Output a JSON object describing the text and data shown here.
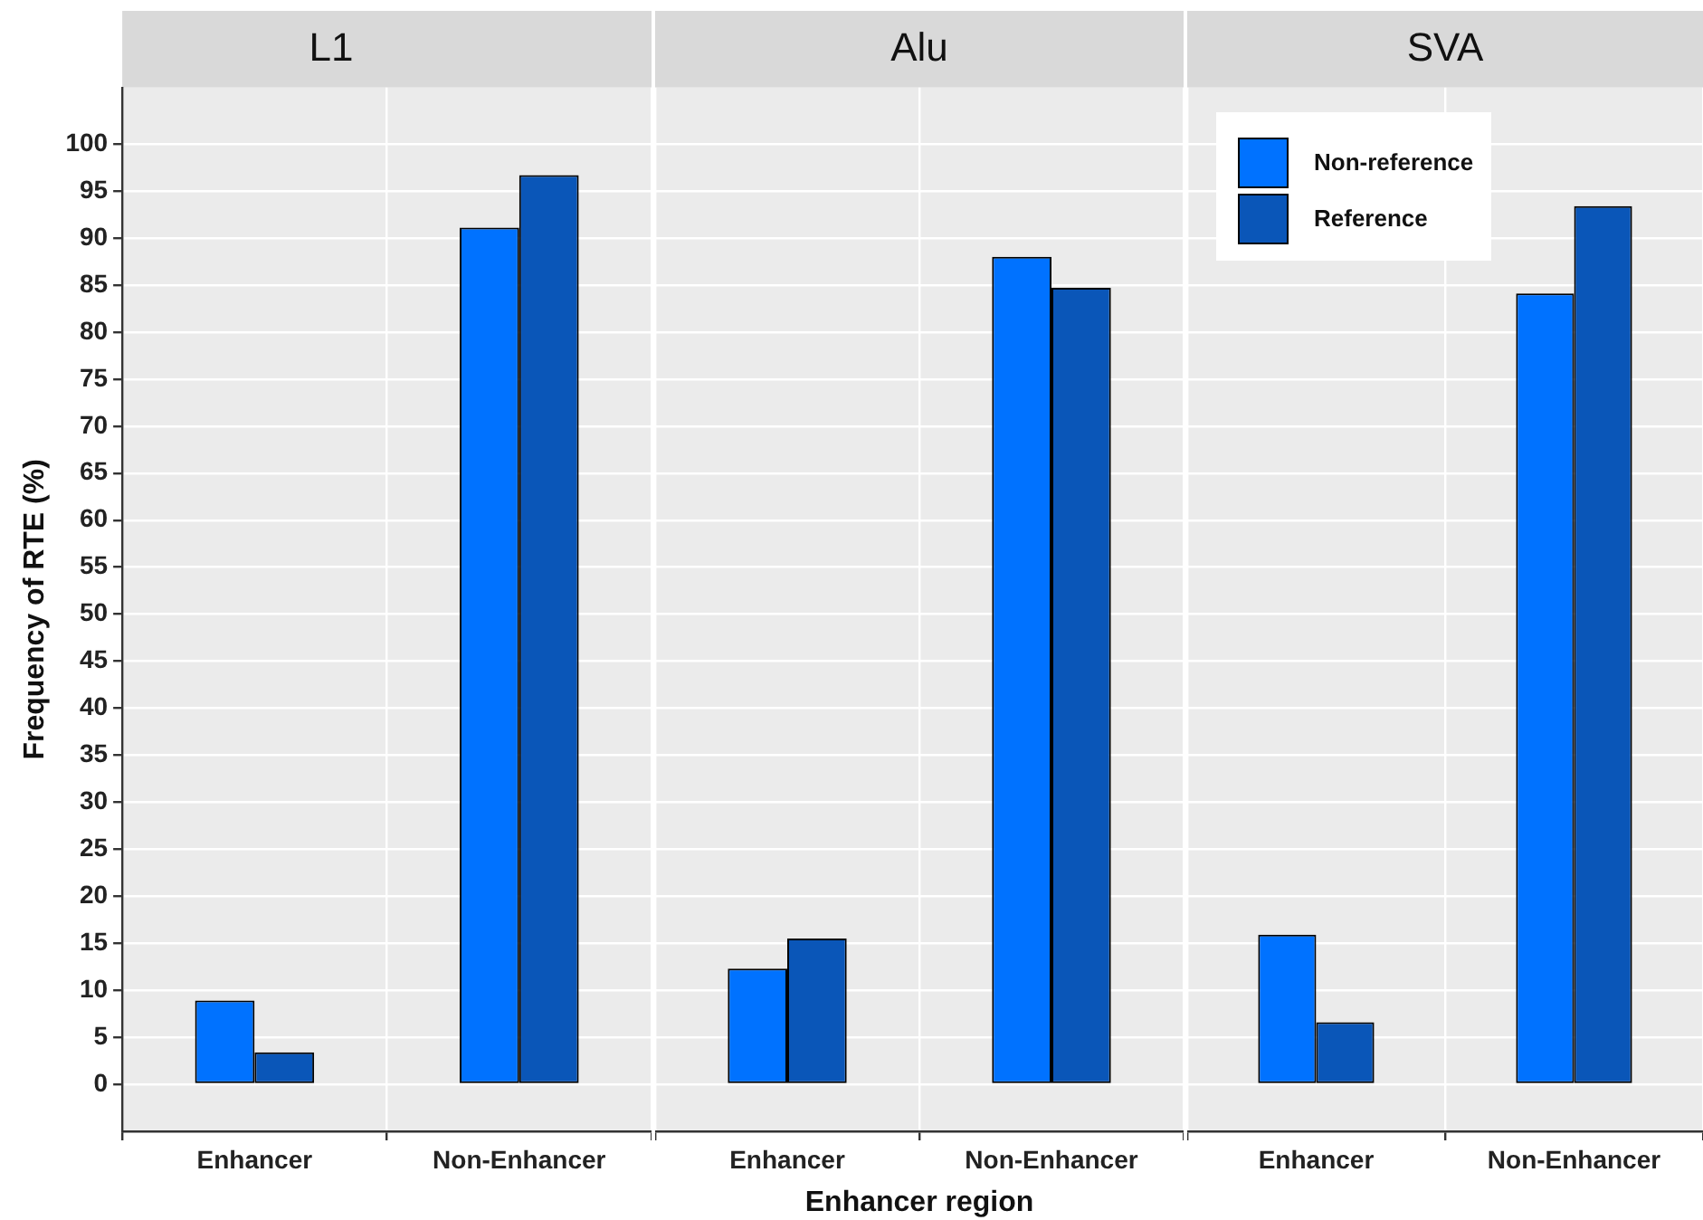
{
  "chart_data": [
    {
      "type": "bar",
      "title": "L1",
      "ylabel": "Frequency of RTE (%)",
      "categories": [
        "Enhancer",
        "Non-Enhancer"
      ],
      "series": [
        {
          "color": "#0072ff",
          "values": [
            8.9,
            91.1
          ]
        },
        {
          "color": "#0a56b8",
          "values": [
            3.4,
            96.7
          ]
        }
      ],
      "ylim": [
        -5,
        106
      ],
      "yticks": [
        0,
        5,
        10,
        15,
        20,
        25,
        30,
        35,
        40,
        45,
        50,
        55,
        60,
        65,
        70,
        75,
        80,
        85,
        90,
        95,
        100
      ],
      "grid": true
    },
    {
      "type": "bar",
      "title": "Alu",
      "xlabel": "Enhancer region",
      "categories": [
        "Enhancer",
        "Non-Enhancer"
      ],
      "series": [
        {
          "color": "#0072ff",
          "values": [
            12.3,
            88
          ]
        },
        {
          "color": "#0a56b8",
          "values": [
            15.5,
            84.7
          ]
        }
      ],
      "ylim": [
        -5,
        106
      ],
      "yticks": [
        0,
        5,
        10,
        15,
        20,
        25,
        30,
        35,
        40,
        45,
        50,
        55,
        60,
        65,
        70,
        75,
        80,
        85,
        90,
        95,
        100
      ],
      "grid": true,
      "tick_labels": "x"
    },
    {
      "type": "bar",
      "title": "SVA",
      "categories": [
        "Enhancer",
        "Non-Enhancer"
      ],
      "series": [
        {
          "name": "Non-reference",
          "color": "#0072ff",
          "values": [
            15.9,
            84.1
          ]
        },
        {
          "name": "Reference",
          "color": "#0a56b8",
          "values": [
            6.6,
            93.4
          ]
        }
      ],
      "ylim": [
        -5,
        106
      ],
      "yticks": [
        0,
        5,
        10,
        15,
        20,
        25,
        30,
        35,
        40,
        45,
        50,
        55,
        60,
        65,
        70,
        75,
        80,
        85,
        90,
        95,
        100
      ],
      "grid": true,
      "tick_labels": "x",
      "legend": "top left"
    }
  ]
}
